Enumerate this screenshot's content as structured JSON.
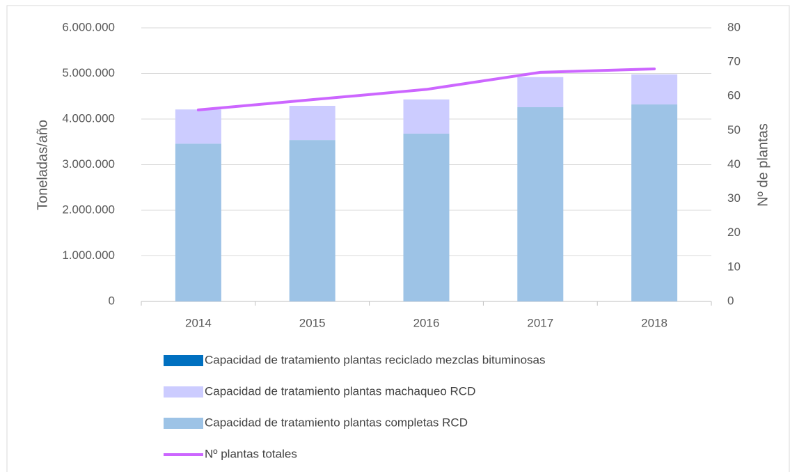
{
  "chart_data": {
    "type": "bar",
    "categories": [
      "2014",
      "2015",
      "2016",
      "2017",
      "2018"
    ],
    "y_label": "Toneladas/año",
    "y2_label": "Nº de plantas",
    "series": [
      {
        "name": "Capacidad de tratamiento plantas completas RCD",
        "color": "#9dc3e6",
        "type": "bar",
        "values": [
          3460000,
          3540000,
          3680000,
          4260000,
          4320000
        ]
      },
      {
        "name": "Capacidad de tratamiento plantas machaqueo RCD",
        "color": "#ccccff",
        "type": "bar",
        "values": [
          750000,
          750000,
          750000,
          660000,
          660000
        ]
      },
      {
        "name": "Capacidad de tratamiento plantas reciclado mezclas bituminosas",
        "color": "#0070c0",
        "type": "bar",
        "values": [
          0,
          0,
          0,
          0,
          0
        ]
      },
      {
        "name": "Nº plantas totales",
        "color": "#cc66ff",
        "type": "line",
        "axis": "y2",
        "values": [
          56,
          59,
          62,
          67,
          68
        ]
      }
    ],
    "ylim": [
      0,
      6000000
    ],
    "yticks": [
      0,
      {
        "value": 1000000,
        "label": "1.000.000"
      },
      {
        "value": 2000000,
        "label": "2.000.000"
      },
      {
        "value": 3000000,
        "label": "3.000.000"
      },
      {
        "value": 4000000,
        "label": "4.000.000"
      },
      {
        "value": 5000000,
        "label": "5.000.000"
      },
      {
        "value": 6000000,
        "label": "6.000.000"
      }
    ],
    "y2lim": [
      0,
      80
    ],
    "y2ticks": [
      0,
      10,
      20,
      30,
      40,
      50,
      60,
      70,
      80
    ],
    "grid": true
  }
}
